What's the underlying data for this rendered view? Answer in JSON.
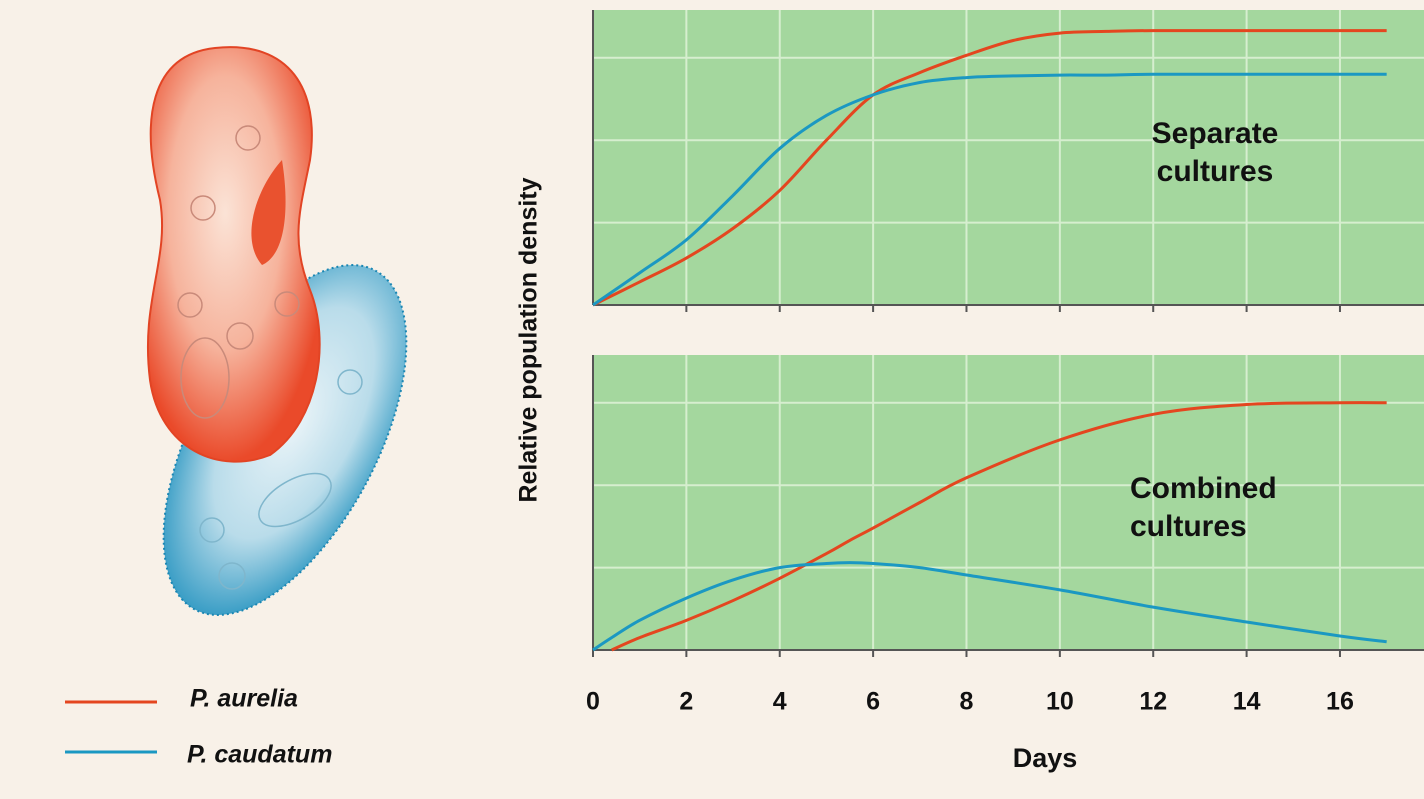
{
  "ylabel": "Relative population density",
  "chart_data": [
    {
      "type": "line",
      "annotation": [
        "Separate",
        "cultures"
      ],
      "x": [
        0,
        1,
        2,
        3,
        4,
        5,
        6,
        7,
        8,
        9,
        10,
        11,
        12,
        14,
        17
      ],
      "series": [
        {
          "name": "P. aurelia",
          "color": "#e4461f",
          "values": [
            0,
            0.28,
            0.57,
            0.93,
            1.39,
            2.0,
            2.55,
            2.82,
            3.03,
            3.21,
            3.3,
            3.32,
            3.33,
            3.33,
            3.33
          ]
        },
        {
          "name": "P. caudatum",
          "color": "#1b98c2",
          "values": [
            0,
            0.39,
            0.79,
            1.33,
            1.9,
            2.3,
            2.55,
            2.7,
            2.76,
            2.78,
            2.79,
            2.79,
            2.8,
            2.8,
            2.8
          ]
        }
      ],
      "xlim": [
        0,
        17.8
      ],
      "ylim": [
        0,
        3.58
      ],
      "xticks": [
        2,
        4,
        6,
        8,
        10,
        12,
        14,
        16
      ],
      "yticks": [
        1,
        2,
        3
      ],
      "grid": true
    },
    {
      "type": "line",
      "annotation": [
        "Combined",
        "cultures"
      ],
      "xlabel": "Days",
      "x": [
        0,
        0.4,
        1,
        2,
        3,
        4,
        5,
        5.5,
        6,
        7,
        8,
        10,
        12,
        14,
        16,
        17
      ],
      "series": [
        {
          "name": "P. aurelia",
          "color": "#e4461f",
          "values": [
            null,
            0,
            0.15,
            0.36,
            0.6,
            0.87,
            1.17,
            1.33,
            1.48,
            1.79,
            2.09,
            2.55,
            2.86,
            2.98,
            3.0,
            3.0
          ]
        },
        {
          "name": "P. caudatum",
          "color": "#1b98c2",
          "values": [
            0,
            0.15,
            0.36,
            0.63,
            0.85,
            1.0,
            1.05,
            1.06,
            1.05,
            1.0,
            0.91,
            0.73,
            0.52,
            0.34,
            0.17,
            0.1
          ]
        }
      ],
      "xlim": [
        0,
        17.8
      ],
      "ylim": [
        0,
        3.58
      ],
      "xticks": [
        0,
        2,
        4,
        6,
        8,
        10,
        12,
        14,
        16
      ],
      "yticks": [
        1,
        2,
        3
      ],
      "grid": true
    }
  ]
}
